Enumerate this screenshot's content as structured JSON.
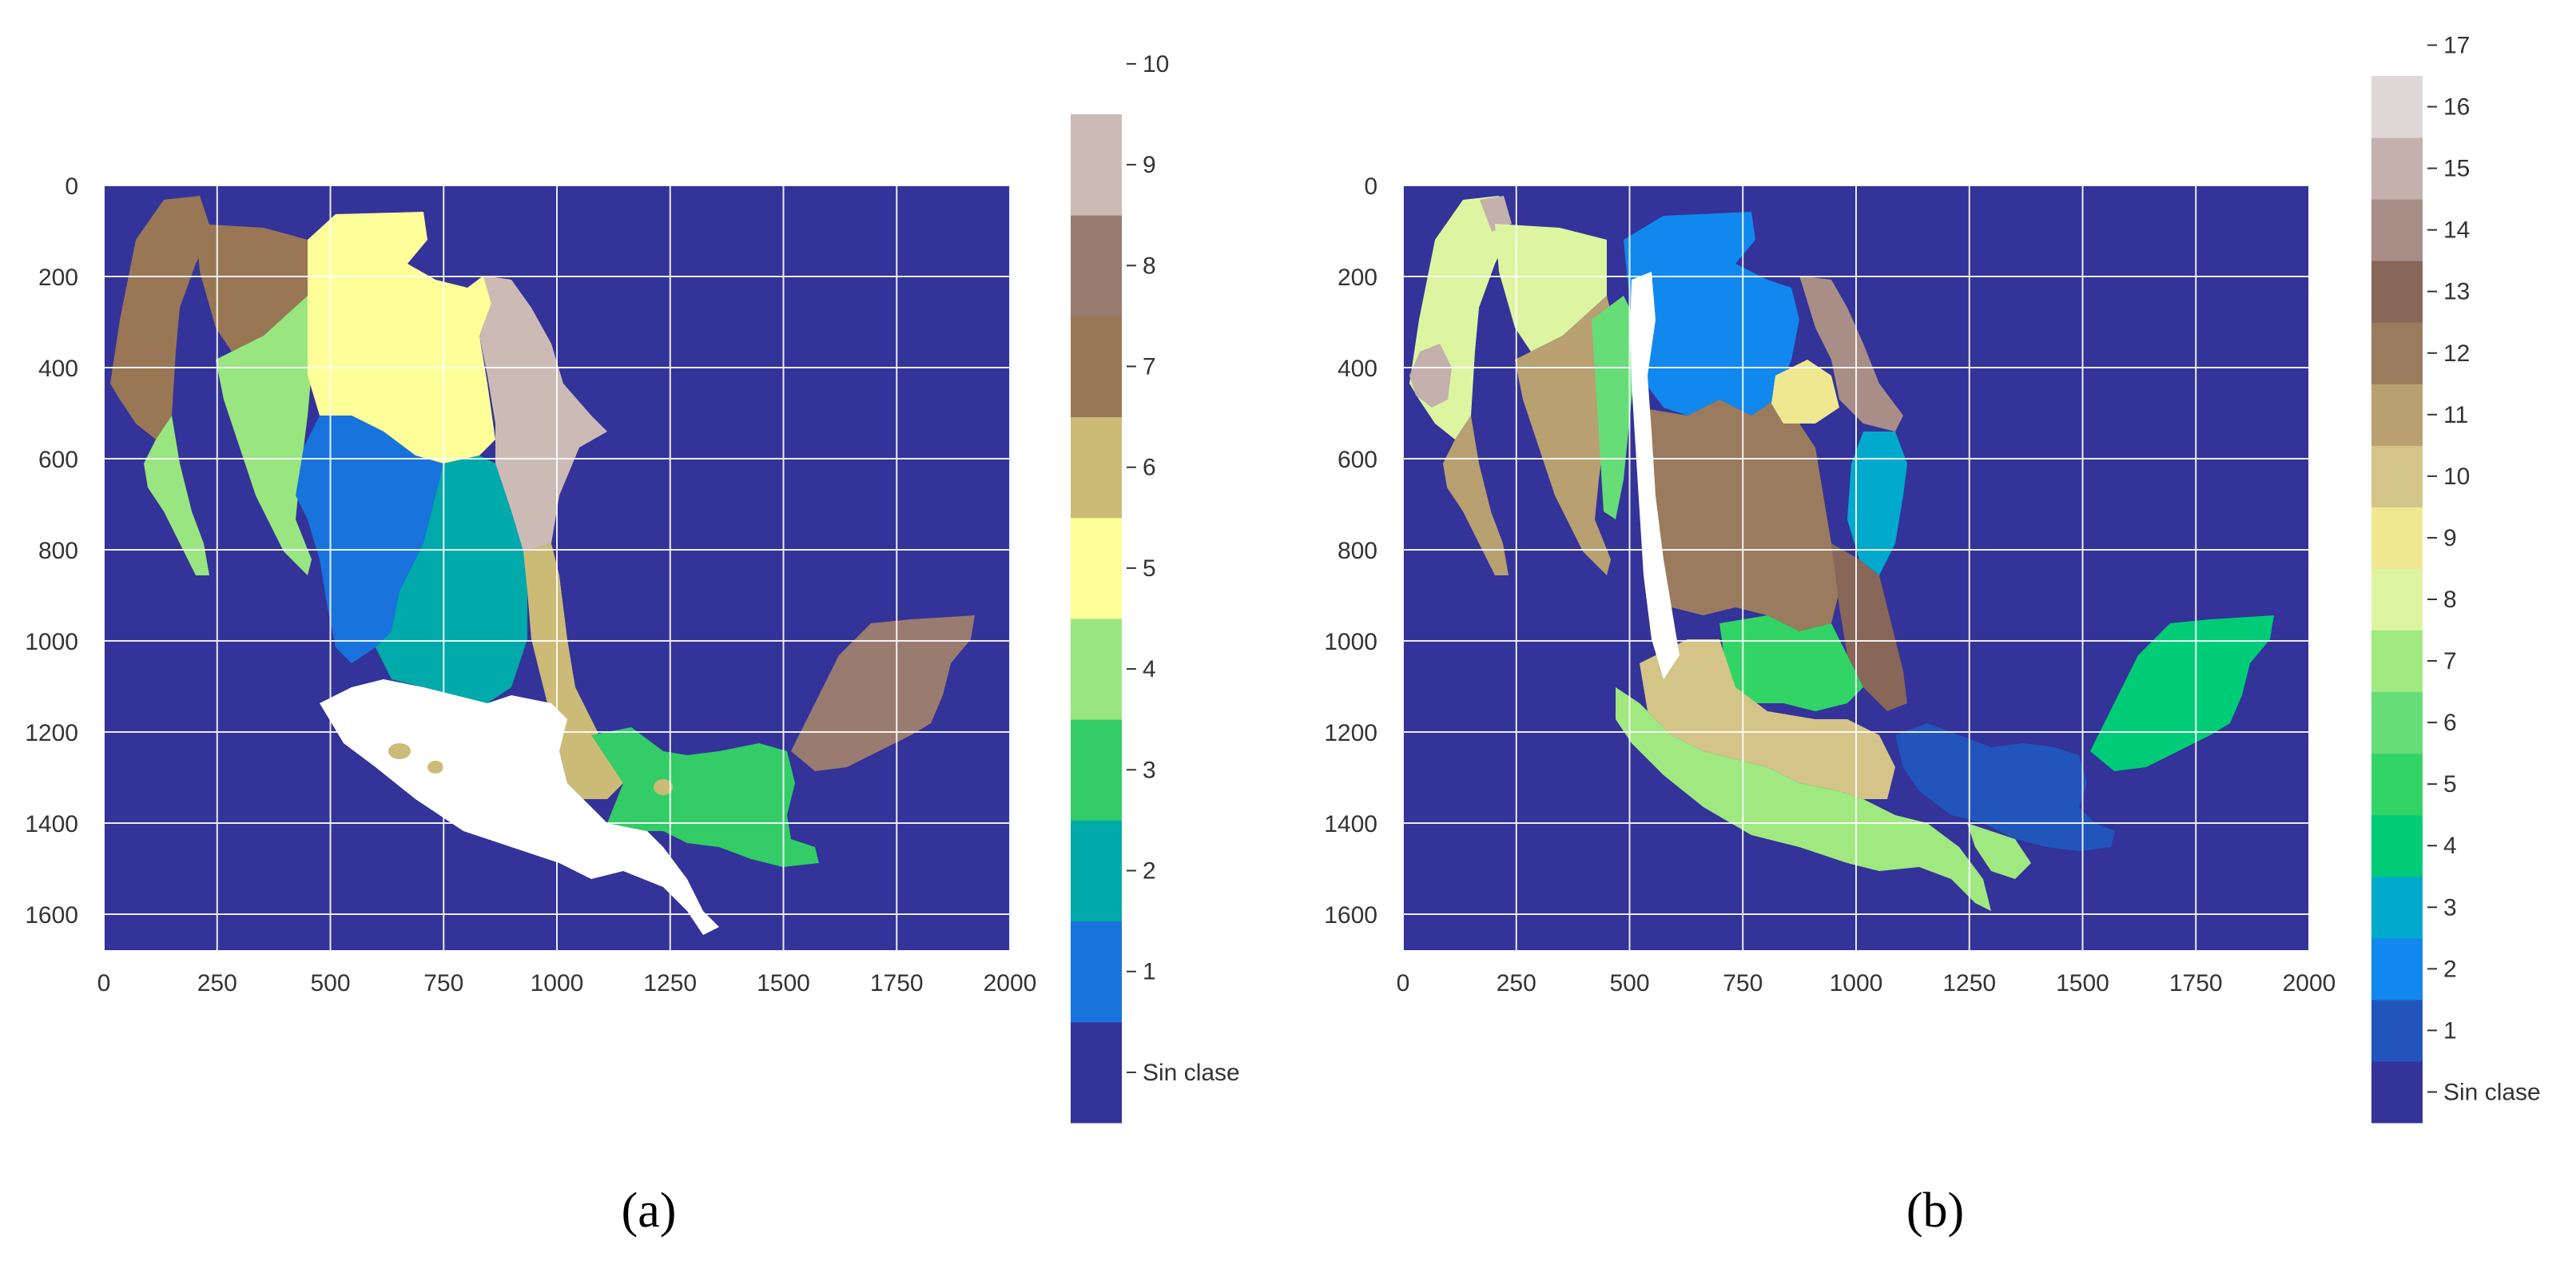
{
  "figures": [
    {
      "id": "a",
      "caption": "(a)",
      "map": {
        "x_ticks": [
          "0",
          "250",
          "500",
          "750",
          "1000",
          "1250",
          "1500",
          "1750",
          "2000"
        ],
        "y_ticks": [
          "0",
          "200",
          "400",
          "600",
          "800",
          "1000",
          "1200",
          "1400",
          "1600"
        ],
        "background_color": "#333399",
        "grid": true
      },
      "colorbar": {
        "top_tick": "10",
        "classes": [
          {
            "label": "Sin clase",
            "color": "#333399"
          },
          {
            "label": "1",
            "color": "#1874dc"
          },
          {
            "label": "2",
            "color": "#00aaaa"
          },
          {
            "label": "3",
            "color": "#33cc66"
          },
          {
            "label": "4",
            "color": "#99e680"
          },
          {
            "label": "5",
            "color": "#ffff99"
          },
          {
            "label": "6",
            "color": "#ccbb77"
          },
          {
            "label": "7",
            "color": "#997755"
          },
          {
            "label": "8",
            "color": "#997b70"
          },
          {
            "label": "9",
            "color": "#ccbbb5"
          }
        ]
      }
    },
    {
      "id": "b",
      "caption": "(b)",
      "map": {
        "x_ticks": [
          "0",
          "250",
          "500",
          "750",
          "1000",
          "1250",
          "1500",
          "1750",
          "2000"
        ],
        "y_ticks": [
          "0",
          "200",
          "400",
          "600",
          "800",
          "1000",
          "1200",
          "1400",
          "1600"
        ],
        "background_color": "#333399",
        "grid": true
      },
      "colorbar": {
        "top_tick": "17",
        "classes": [
          {
            "label": "Sin clase",
            "color": "#333399"
          },
          {
            "label": "1",
            "color": "#2255bb"
          },
          {
            "label": "2",
            "color": "#1188ee"
          },
          {
            "label": "3",
            "color": "#00aacc"
          },
          {
            "label": "4",
            "color": "#00cc77"
          },
          {
            "label": "5",
            "color": "#33d466"
          },
          {
            "label": "6",
            "color": "#66dd77"
          },
          {
            "label": "7",
            "color": "#a0e880"
          },
          {
            "label": "8",
            "color": "#ddf5a0"
          },
          {
            "label": "9",
            "color": "#f0e890"
          },
          {
            "label": "10",
            "color": "#d4c488"
          },
          {
            "label": "11",
            "color": "#b8a070"
          },
          {
            "label": "12",
            "color": "#9a7b5e"
          },
          {
            "label": "13",
            "color": "#886658"
          },
          {
            "label": "14",
            "color": "#a88e86"
          },
          {
            "label": "15",
            "color": "#c4b0ac"
          },
          {
            "label": "16",
            "color": "#e0d8d8"
          }
        ]
      }
    }
  ]
}
